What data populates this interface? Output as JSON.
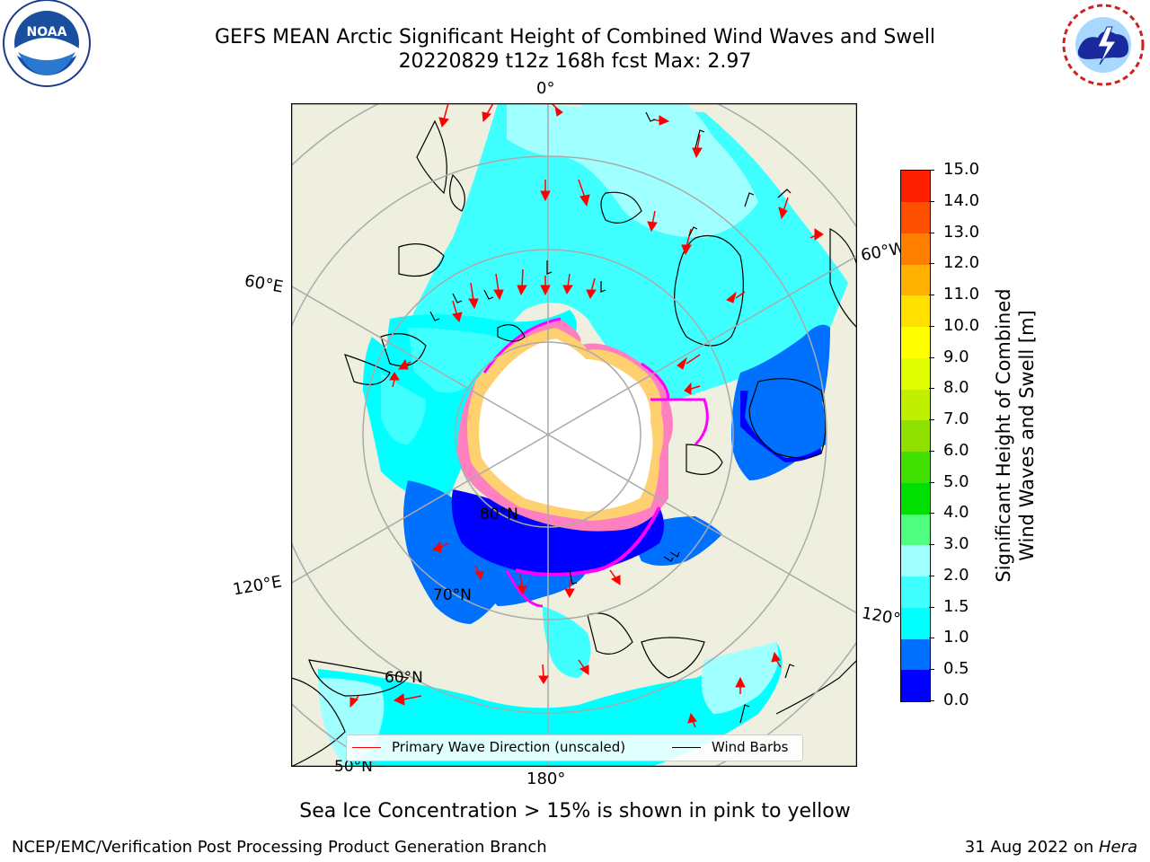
{
  "header": {
    "title_line1": "GEFS MEAN Arctic Significant Height of Combined Wind Waves and Swell",
    "title_line2": "20220829 t12z 168h fcst   Max: 2.97"
  },
  "logos": {
    "noaa_text": "NOAA",
    "noaa_ring_text": "NATIONAL OCEANIC AND ATMOSPHERIC ADMINISTRATION · U.S. DEPARTMENT OF COMMERCE",
    "nws_ring_text": "NATIONAL WEATHER SERVICE"
  },
  "map": {
    "lon_labels": {
      "top": "0°",
      "bottom": "180°",
      "left_upper": "60°E",
      "left_lower": "120°E",
      "right_upper": "60°W",
      "right_lower": "120°"
    },
    "lat_labels": {
      "lat80": "80°N",
      "lat70": "70°N",
      "lat60": "60°N",
      "lat50": "50°N"
    },
    "colors": {
      "land": "#efefdf",
      "ice_white": "#ffffff",
      "ice_pink": "#ff80c0",
      "ice_magenta": "#ff00ff",
      "ice_yellow": "#ffd070",
      "wave_0_0.5": "#0000ff",
      "wave_0.5_1": "#0070ff",
      "wave_1_1.5": "#00ffff",
      "wave_1.5_2": "#40ffff",
      "wave_2_3": "#a0ffff",
      "arrow": "#ff0000",
      "barb": "#000000"
    }
  },
  "legend": {
    "primary_wave": "Primary Wave Direction (unscaled)",
    "wind_barbs": "Wind Barbs"
  },
  "colorbar": {
    "title_line1": "Significant Height of Combined",
    "title_line2": "Wind Waves and Swell [m]",
    "ticks": [
      "0.0",
      "0.5",
      "1.0",
      "1.5",
      "2.0",
      "3.0",
      "4.0",
      "5.0",
      "6.0",
      "7.0",
      "8.0",
      "9.0",
      "10.0",
      "11.0",
      "12.0",
      "13.0",
      "14.0",
      "15.0"
    ],
    "colors": [
      "#0000ff",
      "#0070ff",
      "#00ffff",
      "#40ffff",
      "#a0ffff",
      "#50ff80",
      "#00e000",
      "#40e000",
      "#90e000",
      "#c0f000",
      "#e0ff00",
      "#ffff00",
      "#ffe000",
      "#ffb000",
      "#ff8000",
      "#ff5000",
      "#ff2000",
      "#ff0000"
    ]
  },
  "caption": "Sea Ice Concentration > 15% is shown in pink to yellow",
  "footer": {
    "left": "NCEP/EMC/Verification Post Processing Product Generation Branch",
    "right_date": "31 Aug 2022 on ",
    "right_host": "Hera"
  }
}
